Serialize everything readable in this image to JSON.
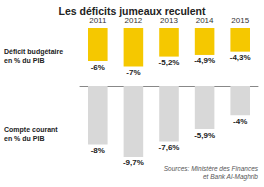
{
  "chart_data": [
    {
      "type": "bar",
      "title": "Les déficits jumeaux reculent",
      "categories": [
        "2011",
        "2012",
        "2013",
        "2014",
        "2015"
      ],
      "values": [
        -6,
        -7,
        -5.2,
        -4.9,
        -4.3
      ],
      "value_labels": [
        "-6%",
        "-7%",
        "-5,2%",
        "-4,9%",
        "-4,3%"
      ],
      "data_labels": true,
      "color": "#F5C800",
      "ylim": [
        -10,
        0
      ],
      "tick_labels": "x",
      "annotations": [
        "Déficit budgétaire\nen % du PIB"
      ]
    },
    {
      "type": "bar",
      "categories": [
        "2011",
        "2012",
        "2013",
        "2014",
        "2015"
      ],
      "values": [
        -8,
        -9.7,
        -7.6,
        -5.9,
        -4
      ],
      "value_labels": [
        "-8%",
        "-9,7%",
        "-7,6%",
        "-5,9%",
        "-4%"
      ],
      "data_labels": true,
      "color": "#D8D8D8",
      "ylim": [
        -13,
        0
      ],
      "tick_labels": false,
      "annotations": [
        "Compte courant\nen % du PIB",
        "Sources: Ministère des Finances\net Bank Al-Maghrib"
      ]
    }
  ]
}
